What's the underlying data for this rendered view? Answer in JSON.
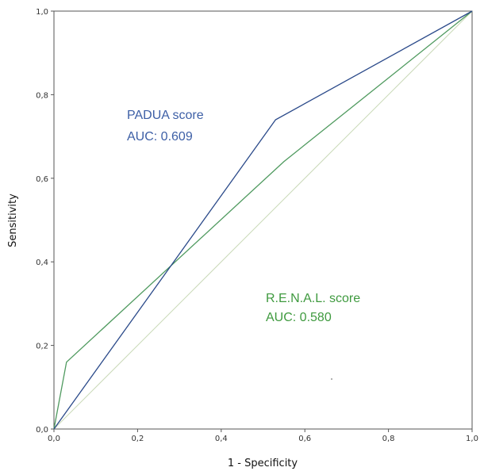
{
  "chart_data": {
    "type": "line",
    "xlabel": "1 - Specificity",
    "ylabel": "Sensitivity",
    "xlim": [
      0,
      1
    ],
    "ylim": [
      0,
      1
    ],
    "x_ticks": [
      "0,0",
      "0,2",
      "0,4",
      "0,6",
      "0,8",
      "1,0"
    ],
    "y_ticks": [
      "0,0",
      "0,2",
      "0,4",
      "0,6",
      "0,8",
      "1,0"
    ],
    "grid": false,
    "series": [
      {
        "name": "PADUA score",
        "color": "#2b4a8a",
        "points": [
          [
            0,
            0
          ],
          [
            0.53,
            0.74
          ],
          [
            1,
            1
          ]
        ]
      },
      {
        "name": "R.E.N.A.L. score",
        "color": "#4f9a5f",
        "points": [
          [
            0,
            0
          ],
          [
            0.03,
            0.16
          ],
          [
            0.55,
            0.64
          ],
          [
            1,
            1
          ]
        ]
      },
      {
        "name": "",
        "color": "#c9d9b8",
        "points": [
          [
            0,
            0
          ],
          [
            1,
            1
          ]
        ]
      }
    ],
    "annotations": [
      {
        "line1": "PADUA score",
        "line2": "AUC: 0.609",
        "color": "#3d5fa6"
      },
      {
        "line1": "R.E.N.A.L. score",
        "line2": "AUC: 0.580",
        "color": "#3f9a3f"
      }
    ]
  }
}
